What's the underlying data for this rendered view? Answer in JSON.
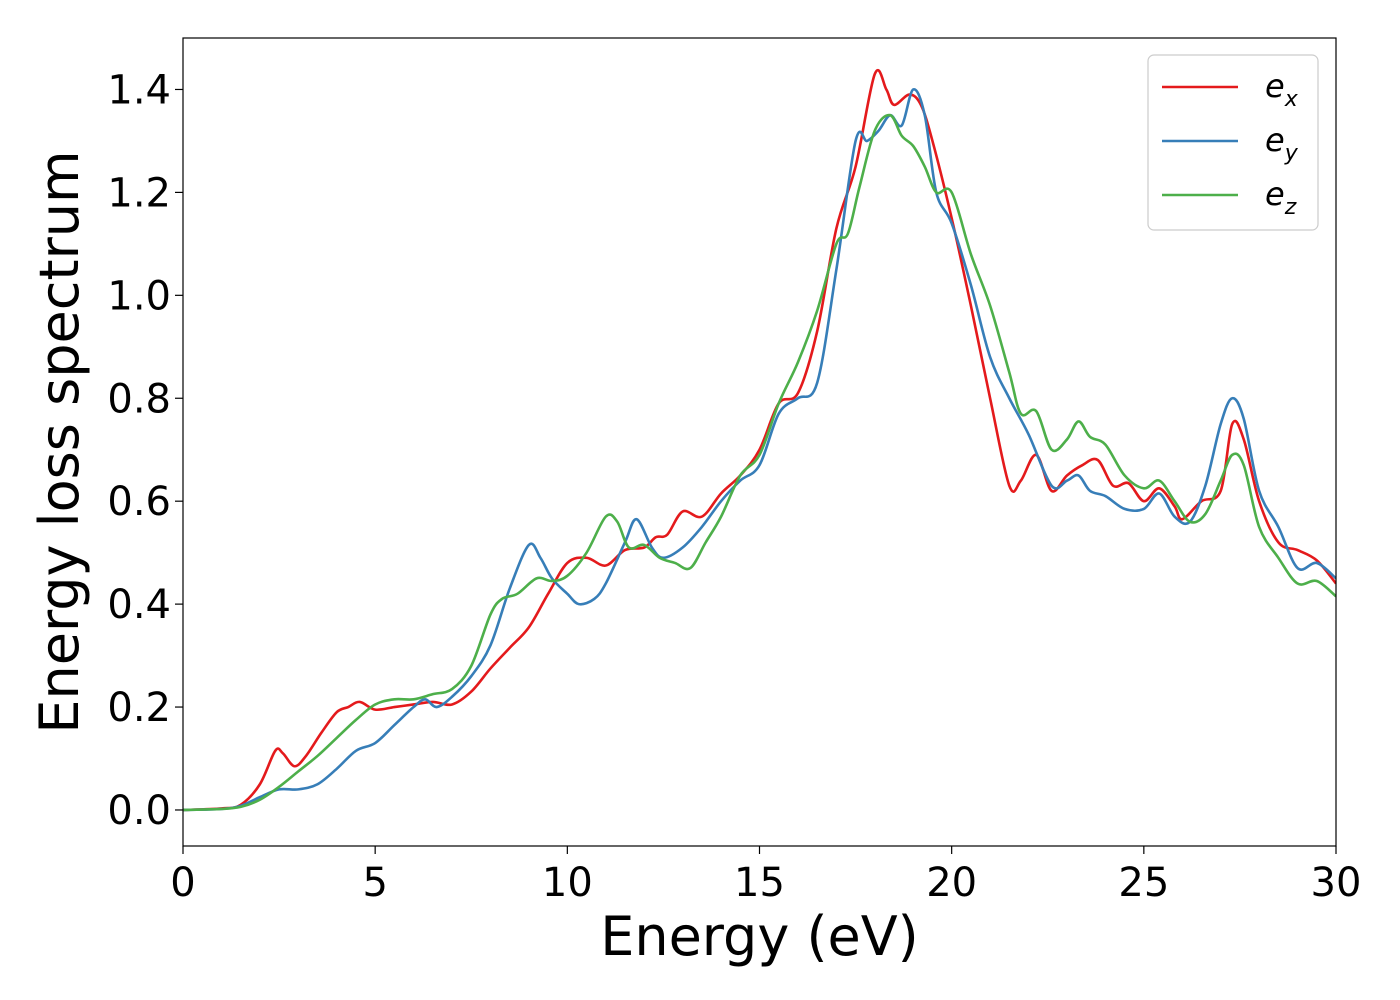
{
  "chart_data": {
    "type": "line",
    "title": "",
    "xlabel": "Energy (eV)",
    "ylabel": "Energy loss spectrum",
    "xlim": [
      0,
      30
    ],
    "ylim": [
      -0.07,
      1.5
    ],
    "xticks": [
      0,
      5,
      10,
      15,
      20,
      25,
      30
    ],
    "xtick_labels": [
      "0",
      "5",
      "10",
      "15",
      "20",
      "25",
      "30"
    ],
    "yticks": [
      0.0,
      0.2,
      0.4,
      0.6,
      0.8,
      1.0,
      1.2,
      1.4
    ],
    "ytick_labels": [
      "0.0",
      "0.2",
      "0.4",
      "0.6",
      "0.8",
      "1.0",
      "1.2",
      "1.4"
    ],
    "grid": false,
    "legend_position": "top-right",
    "series": [
      {
        "name": "e_x",
        "label_base": "e",
        "label_sub": "x",
        "color": "#e41a1c",
        "points": [
          [
            0,
            0
          ],
          [
            1,
            0.003
          ],
          [
            1.5,
            0.01
          ],
          [
            2,
            0.05
          ],
          [
            2.4,
            0.115
          ],
          [
            2.6,
            0.11
          ],
          [
            2.9,
            0.085
          ],
          [
            3.2,
            0.105
          ],
          [
            3.6,
            0.15
          ],
          [
            4,
            0.19
          ],
          [
            4.3,
            0.2
          ],
          [
            4.6,
            0.21
          ],
          [
            5,
            0.195
          ],
          [
            5.5,
            0.2
          ],
          [
            6,
            0.205
          ],
          [
            6.5,
            0.21
          ],
          [
            7,
            0.205
          ],
          [
            7.5,
            0.23
          ],
          [
            8,
            0.275
          ],
          [
            8.5,
            0.315
          ],
          [
            9,
            0.355
          ],
          [
            9.5,
            0.42
          ],
          [
            10,
            0.48
          ],
          [
            10.5,
            0.49
          ],
          [
            11,
            0.475
          ],
          [
            11.5,
            0.505
          ],
          [
            12,
            0.51
          ],
          [
            12.3,
            0.53
          ],
          [
            12.6,
            0.535
          ],
          [
            13,
            0.58
          ],
          [
            13.5,
            0.57
          ],
          [
            14,
            0.615
          ],
          [
            14.5,
            0.65
          ],
          [
            15,
            0.7
          ],
          [
            15.5,
            0.79
          ],
          [
            16,
            0.81
          ],
          [
            16.5,
            0.93
          ],
          [
            17,
            1.13
          ],
          [
            17.5,
            1.25
          ],
          [
            18,
            1.43
          ],
          [
            18.3,
            1.4
          ],
          [
            18.5,
            1.37
          ],
          [
            18.9,
            1.39
          ],
          [
            19.2,
            1.37
          ],
          [
            19.5,
            1.3
          ],
          [
            20,
            1.15
          ],
          [
            20.5,
            0.98
          ],
          [
            21,
            0.8
          ],
          [
            21.5,
            0.63
          ],
          [
            21.8,
            0.64
          ],
          [
            22.2,
            0.69
          ],
          [
            22.6,
            0.62
          ],
          [
            23,
            0.65
          ],
          [
            23.4,
            0.67
          ],
          [
            23.8,
            0.68
          ],
          [
            24.2,
            0.63
          ],
          [
            24.6,
            0.635
          ],
          [
            25,
            0.6
          ],
          [
            25.4,
            0.625
          ],
          [
            25.8,
            0.59
          ],
          [
            26,
            0.565
          ],
          [
            26.5,
            0.6
          ],
          [
            27,
            0.62
          ],
          [
            27.3,
            0.75
          ],
          [
            27.6,
            0.72
          ],
          [
            28,
            0.6
          ],
          [
            28.5,
            0.52
          ],
          [
            29,
            0.505
          ],
          [
            29.5,
            0.485
          ],
          [
            30,
            0.44
          ]
        ]
      },
      {
        "name": "e_y",
        "label_base": "e",
        "label_sub": "y",
        "color": "#377eb8",
        "points": [
          [
            0,
            0
          ],
          [
            1,
            0.002
          ],
          [
            1.5,
            0.008
          ],
          [
            2,
            0.025
          ],
          [
            2.5,
            0.04
          ],
          [
            3,
            0.04
          ],
          [
            3.5,
            0.05
          ],
          [
            4,
            0.08
          ],
          [
            4.5,
            0.115
          ],
          [
            5,
            0.13
          ],
          [
            5.5,
            0.165
          ],
          [
            6,
            0.2
          ],
          [
            6.3,
            0.215
          ],
          [
            6.6,
            0.2
          ],
          [
            7,
            0.22
          ],
          [
            7.5,
            0.26
          ],
          [
            8,
            0.32
          ],
          [
            8.5,
            0.43
          ],
          [
            9,
            0.515
          ],
          [
            9.3,
            0.49
          ],
          [
            9.6,
            0.45
          ],
          [
            10,
            0.42
          ],
          [
            10.3,
            0.4
          ],
          [
            10.7,
            0.41
          ],
          [
            11,
            0.44
          ],
          [
            11.5,
            0.52
          ],
          [
            11.8,
            0.565
          ],
          [
            12.2,
            0.51
          ],
          [
            12.5,
            0.49
          ],
          [
            13,
            0.51
          ],
          [
            13.5,
            0.55
          ],
          [
            14,
            0.6
          ],
          [
            14.5,
            0.64
          ],
          [
            15,
            0.67
          ],
          [
            15.5,
            0.77
          ],
          [
            16,
            0.8
          ],
          [
            16.5,
            0.83
          ],
          [
            17,
            1.05
          ],
          [
            17.5,
            1.3
          ],
          [
            17.8,
            1.3
          ],
          [
            18.1,
            1.32
          ],
          [
            18.4,
            1.35
          ],
          [
            18.7,
            1.33
          ],
          [
            19,
            1.4
          ],
          [
            19.3,
            1.35
          ],
          [
            19.6,
            1.2
          ],
          [
            20,
            1.14
          ],
          [
            20.5,
            1.02
          ],
          [
            21,
            0.88
          ],
          [
            21.5,
            0.8
          ],
          [
            22,
            0.73
          ],
          [
            22.6,
            0.63
          ],
          [
            23,
            0.64
          ],
          [
            23.3,
            0.65
          ],
          [
            23.6,
            0.62
          ],
          [
            24,
            0.61
          ],
          [
            24.5,
            0.585
          ],
          [
            25,
            0.585
          ],
          [
            25.4,
            0.615
          ],
          [
            25.8,
            0.57
          ],
          [
            26.2,
            0.56
          ],
          [
            26.6,
            0.63
          ],
          [
            27,
            0.75
          ],
          [
            27.3,
            0.8
          ],
          [
            27.6,
            0.76
          ],
          [
            28,
            0.62
          ],
          [
            28.5,
            0.55
          ],
          [
            29,
            0.47
          ],
          [
            29.5,
            0.48
          ],
          [
            30,
            0.45
          ]
        ]
      },
      {
        "name": "e_z",
        "label_base": "e",
        "label_sub": "z",
        "color": "#4daf4a",
        "points": [
          [
            0,
            0
          ],
          [
            1,
            0.002
          ],
          [
            1.5,
            0.006
          ],
          [
            2,
            0.02
          ],
          [
            2.5,
            0.045
          ],
          [
            3,
            0.075
          ],
          [
            3.5,
            0.105
          ],
          [
            4,
            0.14
          ],
          [
            4.5,
            0.175
          ],
          [
            5,
            0.205
          ],
          [
            5.5,
            0.215
          ],
          [
            6,
            0.215
          ],
          [
            6.5,
            0.225
          ],
          [
            7,
            0.235
          ],
          [
            7.5,
            0.28
          ],
          [
            8,
            0.38
          ],
          [
            8.3,
            0.41
          ],
          [
            8.7,
            0.42
          ],
          [
            9.2,
            0.45
          ],
          [
            9.6,
            0.445
          ],
          [
            10,
            0.455
          ],
          [
            10.5,
            0.5
          ],
          [
            11,
            0.57
          ],
          [
            11.3,
            0.56
          ],
          [
            11.6,
            0.51
          ],
          [
            12,
            0.515
          ],
          [
            12.4,
            0.49
          ],
          [
            12.8,
            0.48
          ],
          [
            13.2,
            0.47
          ],
          [
            13.6,
            0.52
          ],
          [
            14,
            0.57
          ],
          [
            14.5,
            0.65
          ],
          [
            15,
            0.69
          ],
          [
            15.5,
            0.79
          ],
          [
            16,
            0.87
          ],
          [
            16.5,
            0.97
          ],
          [
            17,
            1.1
          ],
          [
            17.3,
            1.12
          ],
          [
            17.6,
            1.21
          ],
          [
            18,
            1.32
          ],
          [
            18.4,
            1.35
          ],
          [
            18.7,
            1.31
          ],
          [
            19,
            1.29
          ],
          [
            19.3,
            1.25
          ],
          [
            19.6,
            1.2
          ],
          [
            20,
            1.2
          ],
          [
            20.5,
            1.08
          ],
          [
            21,
            0.98
          ],
          [
            21.5,
            0.85
          ],
          [
            21.8,
            0.77
          ],
          [
            22.2,
            0.775
          ],
          [
            22.6,
            0.7
          ],
          [
            23,
            0.72
          ],
          [
            23.3,
            0.755
          ],
          [
            23.6,
            0.725
          ],
          [
            24,
            0.71
          ],
          [
            24.5,
            0.65
          ],
          [
            25,
            0.625
          ],
          [
            25.4,
            0.64
          ],
          [
            25.8,
            0.6
          ],
          [
            26.2,
            0.56
          ],
          [
            26.6,
            0.575
          ],
          [
            27,
            0.64
          ],
          [
            27.3,
            0.69
          ],
          [
            27.6,
            0.67
          ],
          [
            28,
            0.55
          ],
          [
            28.5,
            0.49
          ],
          [
            29,
            0.44
          ],
          [
            29.5,
            0.445
          ],
          [
            30,
            0.415
          ]
        ]
      }
    ]
  }
}
